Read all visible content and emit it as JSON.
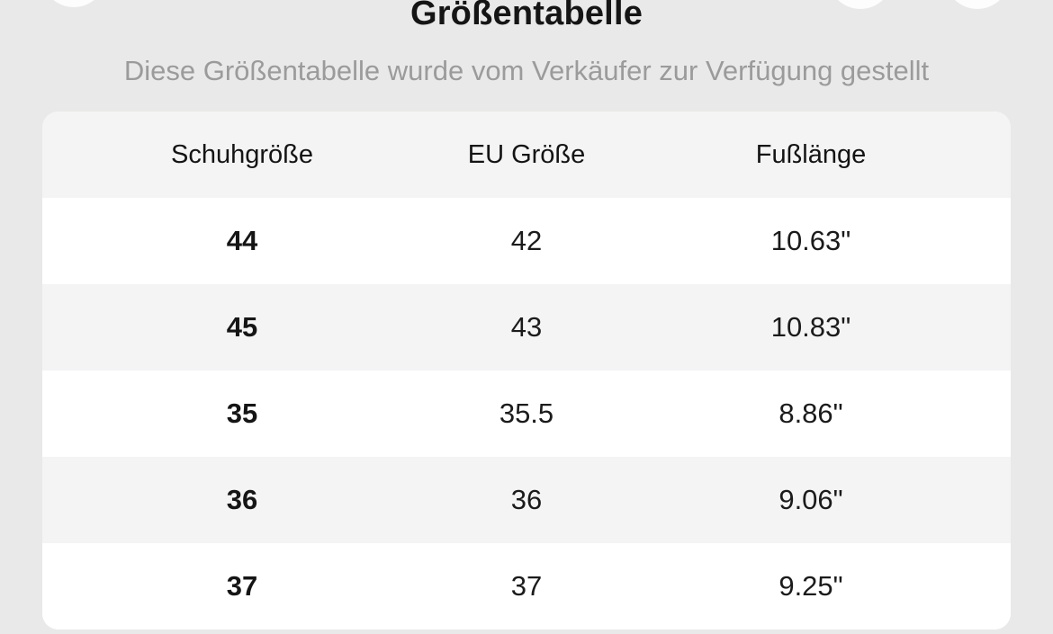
{
  "page": {
    "background_color": "#e9e9e9",
    "surface_color": "#ffffff",
    "shaded_row_color": "#f4f4f5",
    "text_color": "#151515",
    "muted_text_color": "#9b9b9b"
  },
  "header": {
    "title": "Größentabelle",
    "subtitle": "Diese Größentabelle wurde vom Verkäufer zur Verfügung gestellt"
  },
  "size_table": {
    "columns": [
      "Schuhgröße",
      "EU Größe",
      "Fußlänge"
    ],
    "rows": [
      {
        "shoe_size": "44",
        "eu_size": "42",
        "foot_length": "10.63\""
      },
      {
        "shoe_size": "45",
        "eu_size": "43",
        "foot_length": "10.83\""
      },
      {
        "shoe_size": "35",
        "eu_size": "35.5",
        "foot_length": "8.86\""
      },
      {
        "shoe_size": "36",
        "eu_size": "36",
        "foot_length": "9.06\""
      },
      {
        "shoe_size": "37",
        "eu_size": "37",
        "foot_length": "9.25\""
      }
    ]
  }
}
